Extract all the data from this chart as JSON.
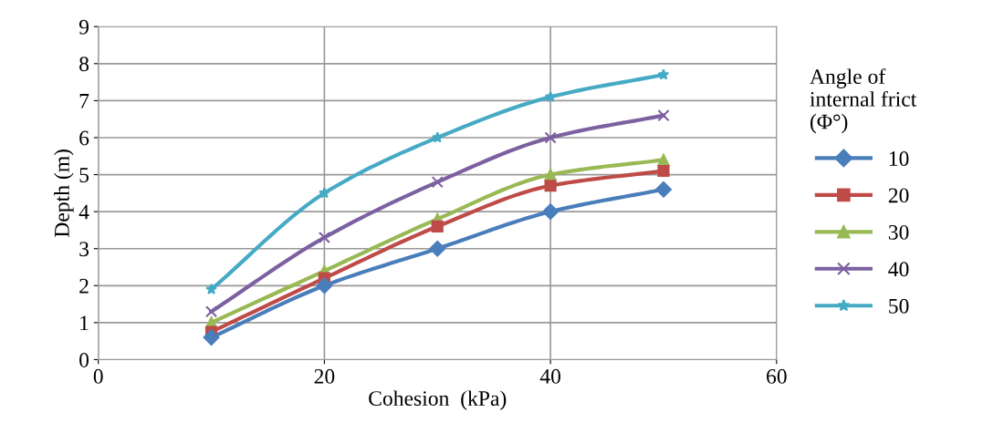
{
  "chart_data": {
    "type": "line",
    "xlabel": "Cohesion  (kPa)",
    "ylabel": "Depth (m)",
    "legend_title": "Angle of\ninternal frict\n(Φ°)",
    "x": [
      10,
      20,
      30,
      40,
      50
    ],
    "series": [
      {
        "name": "10",
        "color": "#4a7ebb",
        "marker": "diamond",
        "values": [
          0.6,
          2.0,
          3.0,
          4.0,
          4.6
        ]
      },
      {
        "name": "20",
        "color": "#be4b48",
        "marker": "square",
        "values": [
          0.75,
          2.2,
          3.6,
          4.7,
          5.1
        ]
      },
      {
        "name": "30",
        "color": "#98b954",
        "marker": "triangle",
        "values": [
          1.0,
          2.4,
          3.8,
          5.0,
          5.4
        ]
      },
      {
        "name": "40",
        "color": "#7d60a0",
        "marker": "cross",
        "values": [
          1.3,
          3.3,
          4.8,
          6.0,
          6.6
        ]
      },
      {
        "name": "50",
        "color": "#46aac5",
        "marker": "star",
        "values": [
          1.9,
          4.5,
          6.0,
          7.1,
          7.7
        ]
      }
    ],
    "xlim": [
      0,
      60
    ],
    "xticks": [
      0,
      20,
      40,
      60
    ],
    "ylim": [
      0,
      9
    ],
    "yticks": [
      0,
      1,
      2,
      3,
      4,
      5,
      6,
      7,
      8,
      9
    ],
    "grid": true,
    "legend": "right",
    "line_style": "solid"
  }
}
